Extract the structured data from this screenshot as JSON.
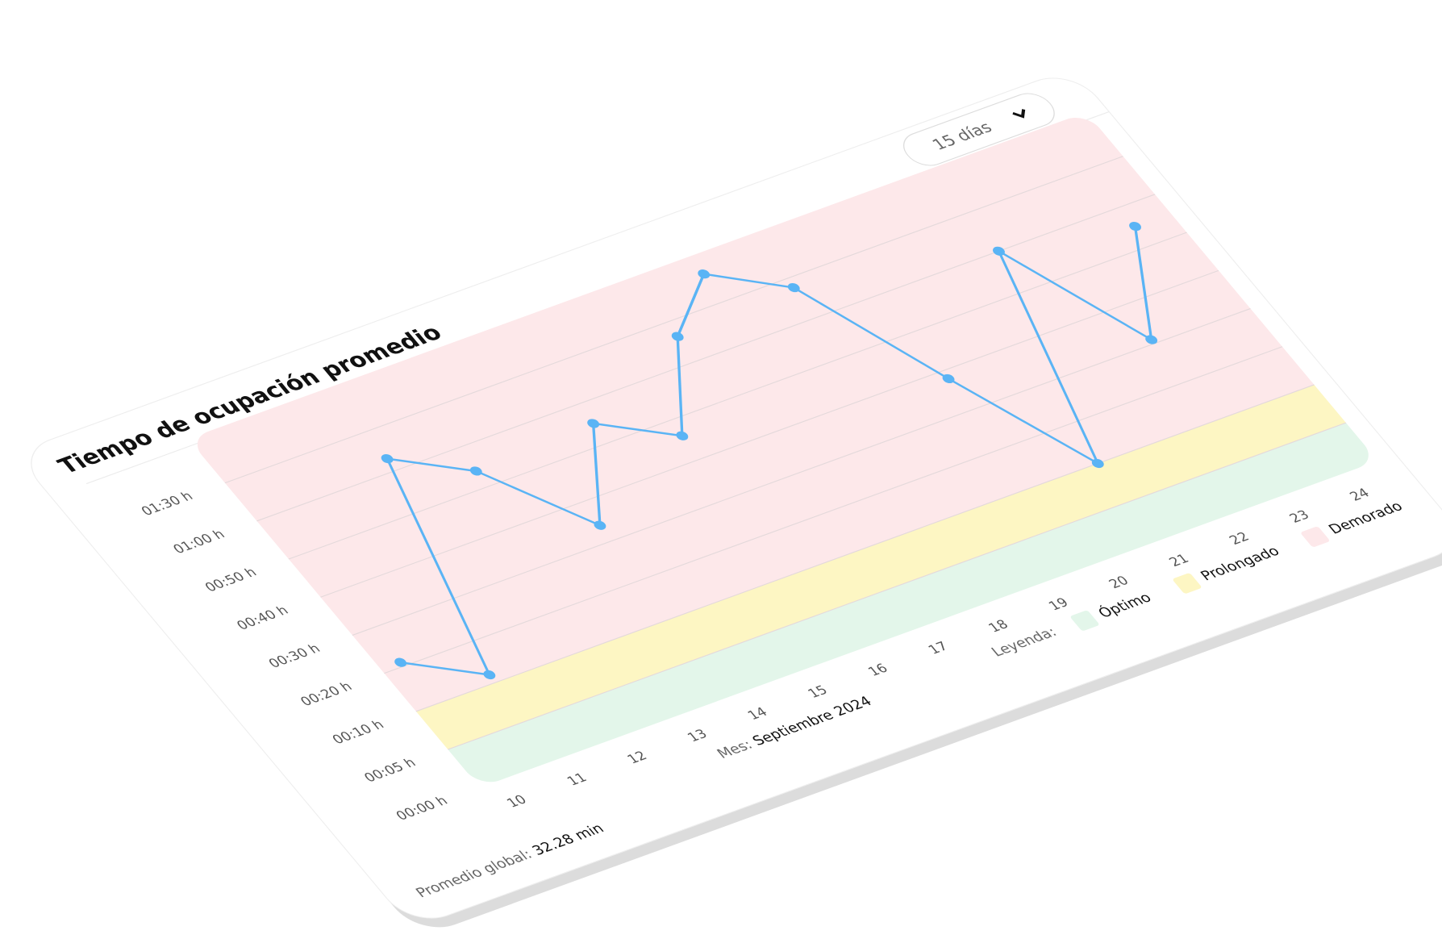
{
  "chart_data": {
    "type": "line",
    "title": "Tiempo de ocupación promedio",
    "categories": [
      "10",
      "11",
      "12",
      "13",
      "14",
      "15",
      "16",
      "17",
      "18",
      "19",
      "20",
      "21",
      "22",
      "23",
      "24"
    ],
    "series": [
      {
        "name": "Tiempo de ocupación",
        "color": "#5ab4f5",
        "values": [
          21,
          12,
          69,
          54,
          34,
          55,
          46,
          79,
          111,
          83,
          38,
          10,
          60,
          31,
          55
        ]
      }
    ],
    "ylim": [
      0,
      120
    ],
    "yticks": [
      {
        "value": 0,
        "label": "00:00 h"
      },
      {
        "value": 5,
        "label": "00:05 h"
      },
      {
        "value": 10,
        "label": "00:10 h"
      },
      {
        "value": 20,
        "label": "00:20 h"
      },
      {
        "value": 30,
        "label": "00:30 h"
      },
      {
        "value": 40,
        "label": "00:40 h"
      },
      {
        "value": 50,
        "label": "00:50 h"
      },
      {
        "value": 60,
        "label": "01:00 h"
      },
      {
        "value": 90,
        "label": "01:30 h"
      }
    ],
    "grid": true,
    "legend_title": "Leyenda:",
    "bands": [
      {
        "name": "Óptimo",
        "color": "#e3f6ea",
        "range": [
          0,
          5
        ]
      },
      {
        "name": "Prolongado",
        "color": "#fdf6c3",
        "range": [
          5,
          10
        ]
      },
      {
        "name": "Demorado",
        "color": "#fde8ea",
        "range": [
          10,
          120
        ]
      }
    ]
  },
  "controls": {
    "period": "15 días"
  },
  "footer": {
    "month_label": "Mes:",
    "month": "Septiembre 2024",
    "average_label": "Promedio global:",
    "average": "32.28 min"
  }
}
